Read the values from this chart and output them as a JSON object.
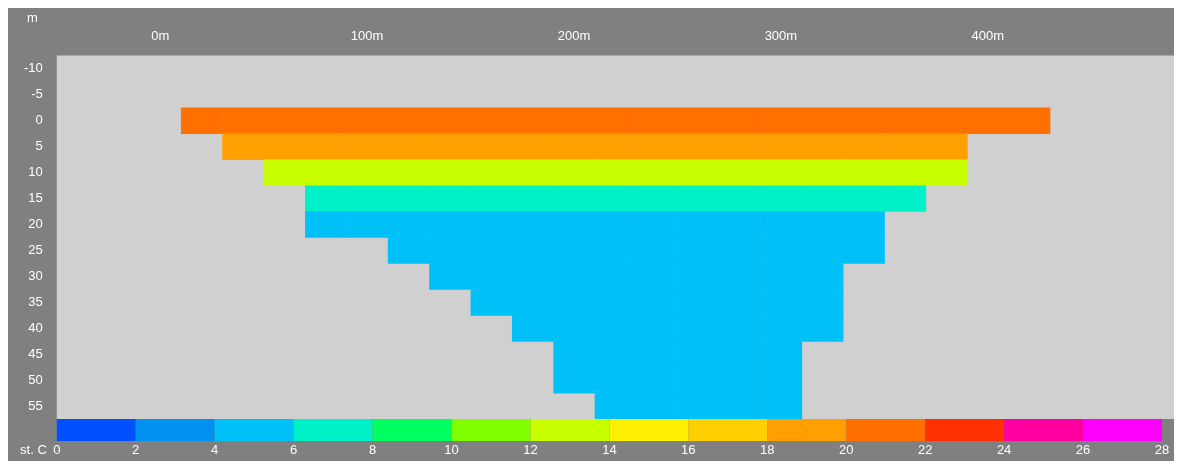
{
  "chart_data": {
    "type": "heatmap",
    "ylabel": "m",
    "clabel": "st. C",
    "categories": [
      null,
      null,
      "0m",
      null,
      null,
      null,
      null,
      "100m",
      null,
      null,
      null,
      null,
      "200m",
      null,
      null,
      null,
      null,
      "300m",
      null,
      null,
      null,
      null,
      "400m",
      null,
      null,
      null,
      null
    ],
    "y_categories": [
      "-10",
      "-5",
      "0",
      "5",
      "10",
      "15",
      "20",
      "25",
      "30",
      "35",
      "40",
      "45",
      "50",
      "55"
    ],
    "cells": [
      [
        null,
        null,
        null,
        null,
        null,
        null,
        null,
        null,
        null,
        null,
        null,
        null,
        null,
        null,
        null,
        null,
        null,
        null,
        null,
        null,
        null,
        null,
        null,
        null,
        null,
        null,
        null
      ],
      [
        null,
        null,
        null,
        null,
        null,
        null,
        null,
        null,
        null,
        null,
        null,
        null,
        null,
        null,
        null,
        null,
        null,
        null,
        null,
        null,
        null,
        null,
        null,
        null,
        null,
        null,
        null
      ],
      [
        null,
        null,
        null,
        21,
        21,
        21,
        21,
        21,
        21,
        21,
        21,
        21,
        21,
        21,
        21,
        21,
        21,
        21,
        21,
        21,
        21,
        21,
        21,
        21,
        null,
        null,
        null
      ],
      [
        null,
        null,
        null,
        null,
        18,
        18,
        18,
        18,
        18,
        18,
        18,
        18,
        18,
        18,
        18,
        18,
        18,
        18,
        18,
        18,
        18,
        18,
        null,
        null,
        null,
        null,
        null
      ],
      [
        null,
        null,
        null,
        null,
        null,
        12,
        12,
        12,
        12,
        12,
        12,
        12,
        12,
        12,
        12,
        12,
        12,
        12,
        12,
        12,
        12,
        12,
        null,
        null,
        null,
        null,
        null
      ],
      [
        null,
        null,
        null,
        null,
        null,
        null,
        7,
        7,
        7,
        7,
        7,
        7,
        7,
        7,
        7,
        7,
        7,
        7,
        7,
        7,
        7,
        null,
        null,
        null,
        null,
        null,
        null
      ],
      [
        null,
        null,
        null,
        null,
        null,
        null,
        5,
        5,
        5,
        5,
        5,
        5,
        5,
        5,
        5,
        5,
        5,
        5,
        5,
        5,
        null,
        null,
        null,
        null,
        null,
        null,
        null
      ],
      [
        null,
        null,
        null,
        null,
        null,
        null,
        null,
        null,
        5,
        5,
        5,
        5,
        5,
        5,
        5,
        5,
        5,
        5,
        5,
        5,
        null,
        null,
        null,
        null,
        null,
        null,
        null
      ],
      [
        null,
        null,
        null,
        null,
        null,
        null,
        null,
        null,
        null,
        4,
        4,
        4,
        4,
        4,
        4,
        4,
        4,
        4,
        4,
        null,
        null,
        null,
        null,
        null,
        null,
        null,
        null
      ],
      [
        null,
        null,
        null,
        null,
        null,
        null,
        null,
        null,
        null,
        null,
        4,
        4,
        4,
        4,
        4,
        4,
        4,
        4,
        4,
        null,
        null,
        null,
        null,
        null,
        null,
        null,
        null
      ],
      [
        null,
        null,
        null,
        null,
        null,
        null,
        null,
        null,
        null,
        null,
        null,
        4,
        4,
        4,
        4,
        4,
        4,
        4,
        4,
        null,
        null,
        null,
        null,
        null,
        null,
        null,
        null
      ],
      [
        null,
        null,
        null,
        null,
        null,
        null,
        null,
        null,
        null,
        null,
        null,
        null,
        4,
        4,
        4,
        4,
        4,
        4,
        null,
        null,
        null,
        null,
        null,
        null,
        null,
        null,
        null
      ],
      [
        null,
        null,
        null,
        null,
        null,
        null,
        null,
        null,
        null,
        null,
        null,
        null,
        4,
        4,
        4,
        4,
        4,
        4,
        null,
        null,
        null,
        null,
        null,
        null,
        null,
        null,
        null
      ],
      [
        null,
        null,
        null,
        null,
        null,
        null,
        null,
        null,
        null,
        null,
        null,
        null,
        null,
        4,
        4,
        4,
        4,
        4,
        null,
        null,
        null,
        null,
        null,
        null,
        null,
        null,
        null
      ]
    ],
    "clim": [
      0,
      28
    ],
    "cticks": [
      0,
      2,
      4,
      6,
      8,
      10,
      12,
      14,
      16,
      18,
      20,
      22,
      24,
      26,
      28
    ],
    "grid": false
  }
}
